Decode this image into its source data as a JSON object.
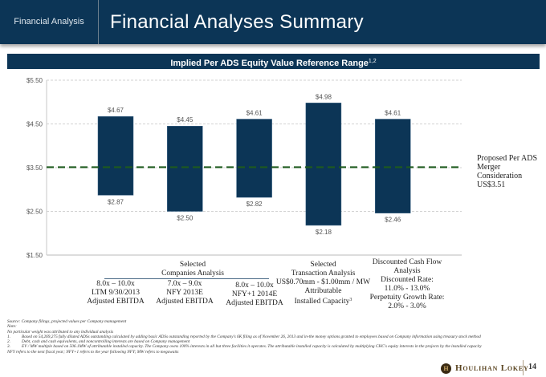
{
  "header": {
    "section": "Financial Analysis",
    "title": "Financial Analyses Summary"
  },
  "band": {
    "title": "Implied Per ADS Equity Value Reference Range",
    "superscript": "1,2"
  },
  "colors": {
    "brand_navy": "#0c3556",
    "bar": "#0c3556",
    "reference_line": "#1e5a1e",
    "logo_gold": "#5a4420"
  },
  "chart_data": {
    "type": "floating-bar",
    "title": "Implied Per ADS Equity Value Reference Range",
    "ylabel": "",
    "ylim": [
      1.5,
      5.5
    ],
    "yticks": [
      1.5,
      2.5,
      3.5,
      4.5,
      5.5
    ],
    "ytick_labels": [
      "$1.50",
      "$2.50",
      "$3.50",
      "$4.50",
      "$5.50"
    ],
    "grid": true,
    "bars": [
      {
        "low": 2.87,
        "high": 4.67,
        "low_label": "$2.87",
        "high_label": "$4.67"
      },
      {
        "low": 2.5,
        "high": 4.45,
        "low_label": "$2.50",
        "high_label": "$4.45"
      },
      {
        "low": 2.82,
        "high": 4.61,
        "low_label": "$2.82",
        "high_label": "$4.61"
      },
      {
        "low": 2.18,
        "high": 4.98,
        "low_label": "$2.18",
        "high_label": "$4.98"
      },
      {
        "low": 2.46,
        "high": 4.61,
        "low_label": "$2.46",
        "high_label": "$4.61"
      }
    ],
    "reference_line": {
      "value": 3.51,
      "label_lines": [
        "Proposed Per ADS",
        "Merger",
        "Consideration",
        "US$3.51"
      ]
    }
  },
  "categories": {
    "companies_group": [
      "Selected",
      "Companies Analysis"
    ],
    "companies": [
      [
        "8.0x – 10.0x",
        "LTM 9/30/2013",
        "Adjusted EBITDA"
      ],
      [
        "7.0x – 9.0x",
        "NFY 2013E",
        "Adjusted EBITDA"
      ],
      [
        "8.0x – 10.0x",
        "NFY+1 2014E",
        "Adjusted EBITDA"
      ]
    ],
    "transaction": [
      "Selected",
      "Transaction Analysis",
      "US$0.70mm - $1.00mm / MW",
      "Attributable",
      "Installed Capacity"
    ],
    "transaction_sup": "3",
    "dcf": [
      "Discounted Cash Flow",
      "Analysis",
      "Discounted Rate:",
      "11.0% - 13.0%",
      "Perpetuity Growth Rate:",
      "2.0% - 3.0%"
    ]
  },
  "footnotes": {
    "source": "Source: Company filings, projected values per Company management",
    "note_label": "Note:",
    "note": "No particular weight was attributed to any individual analysis",
    "items": [
      {
        "num": "1.",
        "text": "Based on 54,269,275 fully diluted ADSs outstanding calculated by adding basic ADSs outstanding reported by the Company's 6K filing as of November 26, 2013 and in-the money options granted to employees based on Company information using treasury stock method"
      },
      {
        "num": "2.",
        "text": "Debt, cash and cash equivalents, and noncontrolling interests are based on Company management"
      },
      {
        "num": "3.",
        "text": "EV / MW multiple based on 506.1MW of attributable installed capacity. The Company owns 100% interests in all but three facilities it operates. The attributable installed capacity is calculated by multiplying CHC's equity interests in the projects by the installed capacity"
      }
    ],
    "abbrev": "NFY refers to the next fiscal year; NFY+1 refers to the year following NFY; MW refers to megawatts"
  },
  "footer": {
    "logo_mark": "H",
    "logo_text": "Houlihan Lokey",
    "page_number": "14"
  }
}
